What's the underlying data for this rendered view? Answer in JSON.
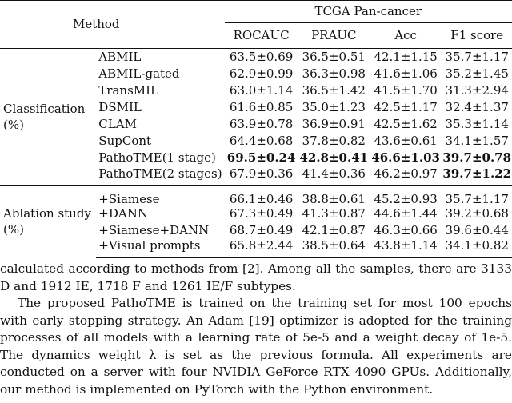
{
  "table": {
    "method_header": "Method",
    "dataset_header": "TCGA Pan-cancer",
    "metric_headers": [
      "ROCAUC",
      "PRAUC",
      "Acc",
      "F1 score"
    ],
    "groups": [
      {
        "label_line1": "Classification",
        "label_line2": "(%)",
        "rows": [
          {
            "method": "ABMIL",
            "rocauc": "63.5±0.69",
            "prauc": "36.5±0.51",
            "acc": "42.1±1.15",
            "f1": "35.7±1.17"
          },
          {
            "method": "ABMIL-gated",
            "rocauc": "62.9±0.99",
            "prauc": "36.3±0.98",
            "acc": "41.6±1.06",
            "f1": "35.2±1.45"
          },
          {
            "method": "TransMIL",
            "rocauc": "63.0±1.14",
            "prauc": "36.5±1.42",
            "acc": "41.5±1.70",
            "f1": "31.3±2.94"
          },
          {
            "method": "DSMIL",
            "rocauc": "61.6±0.85",
            "prauc": "35.0±1.23",
            "acc": "42.5±1.17",
            "f1": "32.4±1.37"
          },
          {
            "method": "CLAM",
            "rocauc": "63.9±0.78",
            "prauc": "36.9±0.91",
            "acc": "42.5±1.62",
            "f1": "35.3±1.14"
          },
          {
            "method": "SupCont",
            "rocauc": "64.4±0.68",
            "prauc": "37.8±0.82",
            "acc": "43.6±0.61",
            "f1": "34.1±1.57"
          },
          {
            "method": "PathoTME(1 stage)",
            "rocauc": "69.5±0.24",
            "prauc": "42.8±0.41",
            "acc": "46.6±1.03",
            "f1": "39.7±0.78"
          },
          {
            "method": "PathoTME(2 stages)",
            "rocauc": "67.9±0.36",
            "prauc": "41.4±0.36",
            "acc": "46.2±0.97",
            "f1": "39.7±1.22"
          }
        ]
      },
      {
        "label_line1": "Ablation study",
        "label_line2": "(%)",
        "rows": [
          {
            "method": "+Siamese",
            "rocauc": "66.1±0.46",
            "prauc": "38.8±0.61",
            "acc": "45.2±0.93",
            "f1": "35.7±1.17"
          },
          {
            "method": "+DANN",
            "rocauc": "67.3±0.49",
            "prauc": "41.3±0.87",
            "acc": "44.6±1.44",
            "f1": "39.2±0.68"
          },
          {
            "method": "+Siamese+DANN",
            "rocauc": "68.7±0.49",
            "prauc": "42.1±0.87",
            "acc": "46.3±0.66",
            "f1": "39.6±0.44"
          },
          {
            "method": "+Visual prompts",
            "rocauc": "65.8±2.44",
            "prauc": "38.5±0.64",
            "acc": "43.8±1.14",
            "f1": "34.1±0.82"
          }
        ]
      }
    ]
  },
  "body_text": {
    "p1": "calculated according to methods from [2]. Among all the samples, there are 3133 D and 1912 IE, 1718 F and 1261 IE/F subtypes.",
    "p2": "The proposed PathoTME is trained on the training set for most 100 epochs with early stopping strategy. An Adam [19] optimizer is adopted for the training processes of all models with a learning rate of 5e-5 and a weight decay of 1e-5. The dynamics weight λ is set as the previous formula. All experiments are conducted on a server with four NVIDIA GeForce RTX 4090 GPUs. Additionally, our method is implemented on PyTorch with the Python environment."
  }
}
